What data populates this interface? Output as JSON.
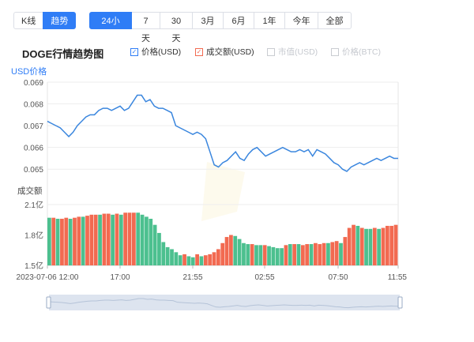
{
  "tabs": {
    "mode": [
      {
        "label": "K线",
        "active": false
      },
      {
        "label": "趋势",
        "active": true
      }
    ],
    "range": [
      {
        "label": "24小时",
        "active": true
      },
      {
        "label": "7天",
        "active": false
      },
      {
        "label": "30天",
        "active": false
      },
      {
        "label": "3月",
        "active": false
      },
      {
        "label": "6月",
        "active": false
      },
      {
        "label": "1年",
        "active": false
      },
      {
        "label": "今年",
        "active": false
      },
      {
        "label": "全部",
        "active": false
      }
    ]
  },
  "chart_title": "DOGE行情趋势图",
  "legend": [
    {
      "label": "价格(USD)",
      "enabled": true,
      "color": "#2f7df6"
    },
    {
      "label": "成交额(USD)",
      "enabled": true,
      "color": "#f26a51"
    },
    {
      "label": "市值(USD)",
      "enabled": false,
      "color": "#c9ccd1"
    },
    {
      "label": "价格(BTC)",
      "enabled": false,
      "color": "#c9ccd1"
    }
  ],
  "price_axis_label": "USD价格",
  "volume_axis_label": "成交额",
  "colors": {
    "accent": "#2f7df6",
    "up": "#f26a51",
    "down": "#4cc08f",
    "line": "#3a86de"
  },
  "chart_data": {
    "type": "line",
    "xlabel": "",
    "ylabel": "USD价格",
    "x_ticks": [
      "2023-07-06 12:00",
      "17:00",
      "21:55",
      "02:55",
      "07:50",
      "11:55"
    ],
    "price": {
      "ylim": [
        0.0645,
        0.069
      ],
      "yticks": [
        "0.069",
        "0.068",
        "0.067",
        "0.066",
        "0.065"
      ],
      "values": [
        0.0672,
        0.0671,
        0.067,
        0.0669,
        0.0667,
        0.0665,
        0.0667,
        0.067,
        0.0672,
        0.0674,
        0.0675,
        0.0675,
        0.0677,
        0.0678,
        0.0678,
        0.0677,
        0.0678,
        0.0679,
        0.0677,
        0.0678,
        0.0681,
        0.0684,
        0.0684,
        0.0681,
        0.0682,
        0.0679,
        0.0678,
        0.0678,
        0.0677,
        0.0676,
        0.067,
        0.0669,
        0.0668,
        0.0667,
        0.0666,
        0.0667,
        0.0666,
        0.0664,
        0.0658,
        0.0652,
        0.0651,
        0.0653,
        0.0654,
        0.0656,
        0.0658,
        0.0655,
        0.0654,
        0.0657,
        0.0659,
        0.066,
        0.0658,
        0.0656,
        0.0657,
        0.0658,
        0.0659,
        0.066,
        0.0659,
        0.0658,
        0.0658,
        0.0659,
        0.0658,
        0.0659,
        0.0656,
        0.0659,
        0.0658,
        0.0657,
        0.0655,
        0.0653,
        0.0652,
        0.065,
        0.0649,
        0.0651,
        0.0652,
        0.0653,
        0.0652,
        0.0653,
        0.0654,
        0.0655,
        0.0654,
        0.0655,
        0.0656,
        0.0655,
        0.0655
      ]
    },
    "volume": {
      "ylim": [
        1.5,
        2.1
      ],
      "yticks": [
        "2.1亿",
        "1.8亿",
        "1.5亿"
      ],
      "unit": "亿",
      "values": [
        1.97,
        1.97,
        1.96,
        1.96,
        1.97,
        1.96,
        1.97,
        1.98,
        1.98,
        1.99,
        2.0,
        2.0,
        2.0,
        2.01,
        2.01,
        2.0,
        2.01,
        2.0,
        2.02,
        2.02,
        2.02,
        2.02,
        2.0,
        1.98,
        1.96,
        1.9,
        1.82,
        1.73,
        1.68,
        1.66,
        1.63,
        1.6,
        1.61,
        1.59,
        1.58,
        1.61,
        1.59,
        1.6,
        1.61,
        1.63,
        1.66,
        1.72,
        1.78,
        1.8,
        1.79,
        1.76,
        1.72,
        1.71,
        1.71,
        1.7,
        1.7,
        1.7,
        1.69,
        1.68,
        1.67,
        1.67,
        1.7,
        1.71,
        1.71,
        1.71,
        1.7,
        1.71,
        1.71,
        1.72,
        1.71,
        1.72,
        1.72,
        1.73,
        1.74,
        1.72,
        1.78,
        1.87,
        1.9,
        1.89,
        1.87,
        1.86,
        1.86,
        1.87,
        1.86,
        1.87,
        1.89,
        1.89,
        1.9
      ],
      "colors": [
        "down",
        "up",
        "down",
        "up",
        "up",
        "down",
        "up",
        "up",
        "down",
        "up",
        "up",
        "up",
        "down",
        "up",
        "up",
        "down",
        "up",
        "down",
        "up",
        "up",
        "up",
        "down",
        "down",
        "down",
        "down",
        "down",
        "down",
        "down",
        "down",
        "down",
        "down",
        "down",
        "up",
        "down",
        "down",
        "up",
        "down",
        "up",
        "up",
        "up",
        "up",
        "up",
        "up",
        "up",
        "down",
        "down",
        "down",
        "down",
        "up",
        "down",
        "down",
        "up",
        "down",
        "down",
        "down",
        "down",
        "up",
        "down",
        "up",
        "down",
        "up",
        "up",
        "down",
        "up",
        "up",
        "up",
        "down",
        "up",
        "up",
        "down",
        "up",
        "up",
        "up",
        "down",
        "up",
        "down",
        "down",
        "up",
        "down",
        "up",
        "up",
        "up",
        "up"
      ]
    }
  }
}
